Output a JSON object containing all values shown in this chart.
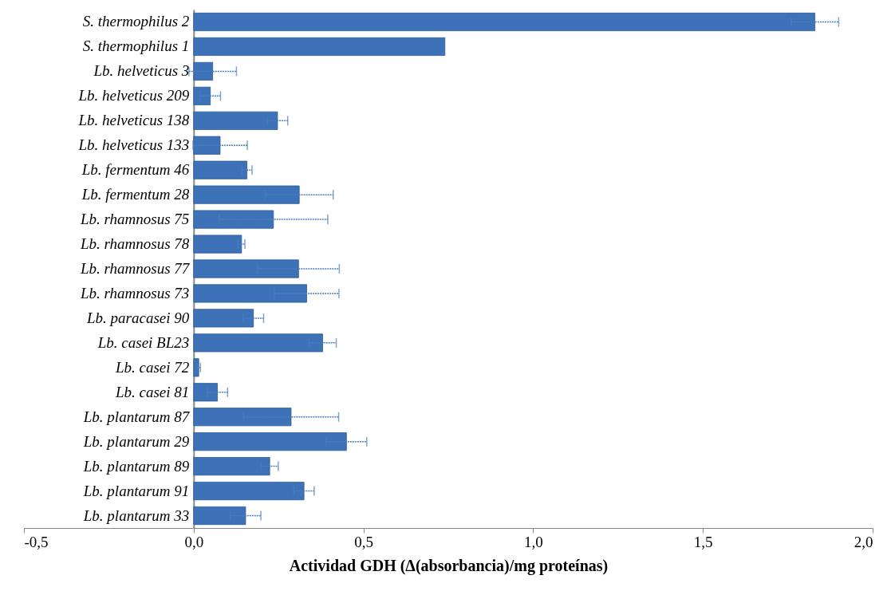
{
  "chart_data": {
    "type": "bar",
    "orientation": "horizontal",
    "xlabel": "Actividad GDH (Δ(absorbancia)/mg proteínas)",
    "categories": [
      "S. thermophilus 2",
      "S. thermophilus 1",
      "Lb. helveticus 3",
      "Lb. helveticus 209",
      "Lb. helveticus 138",
      "Lb. helveticus 133",
      "Lb. fermentum 46",
      "Lb. fermentum 28",
      "Lb. rhamnosus 75",
      "Lb. rhamnosus 78",
      "Lb. rhamnosus 77",
      "Lb. rhamnosus 73",
      "Lb. paracasei 90",
      "Lb. casei BL23",
      "Lb. casei 72",
      "Lb. casei 81",
      "Lb. plantarum 87",
      "Lb. plantarum 29",
      "Lb. plantarum 89",
      "Lb. plantarum 91",
      "Lb. plantarum 33"
    ],
    "values": [
      1.83,
      0.74,
      0.056,
      0.049,
      0.247,
      0.078,
      0.157,
      0.311,
      0.235,
      0.141,
      0.309,
      0.333,
      0.176,
      0.38,
      0.015,
      0.07,
      0.287,
      0.45,
      0.224,
      0.325,
      0.153
    ],
    "errors": [
      0.07,
      null,
      0.07,
      0.03,
      0.03,
      0.08,
      0.015,
      0.1,
      0.16,
      0.01,
      0.12,
      0.095,
      0.03,
      0.04,
      0.005,
      0.03,
      0.14,
      0.06,
      0.025,
      0.03,
      0.045
    ],
    "color": "#3d72b8",
    "xlim": [
      -0.5,
      2.0
    ],
    "xticks": [
      {
        "value": -0.5,
        "label": "-0,5"
      },
      {
        "value": 0,
        "label": "0,0"
      },
      {
        "value": 0.5,
        "label": "0,5"
      },
      {
        "value": 1.0,
        "label": "1,0"
      },
      {
        "value": 1.5,
        "label": "1,5"
      },
      {
        "value": 2.0,
        "label": "2,0"
      }
    ],
    "grid": false
  }
}
